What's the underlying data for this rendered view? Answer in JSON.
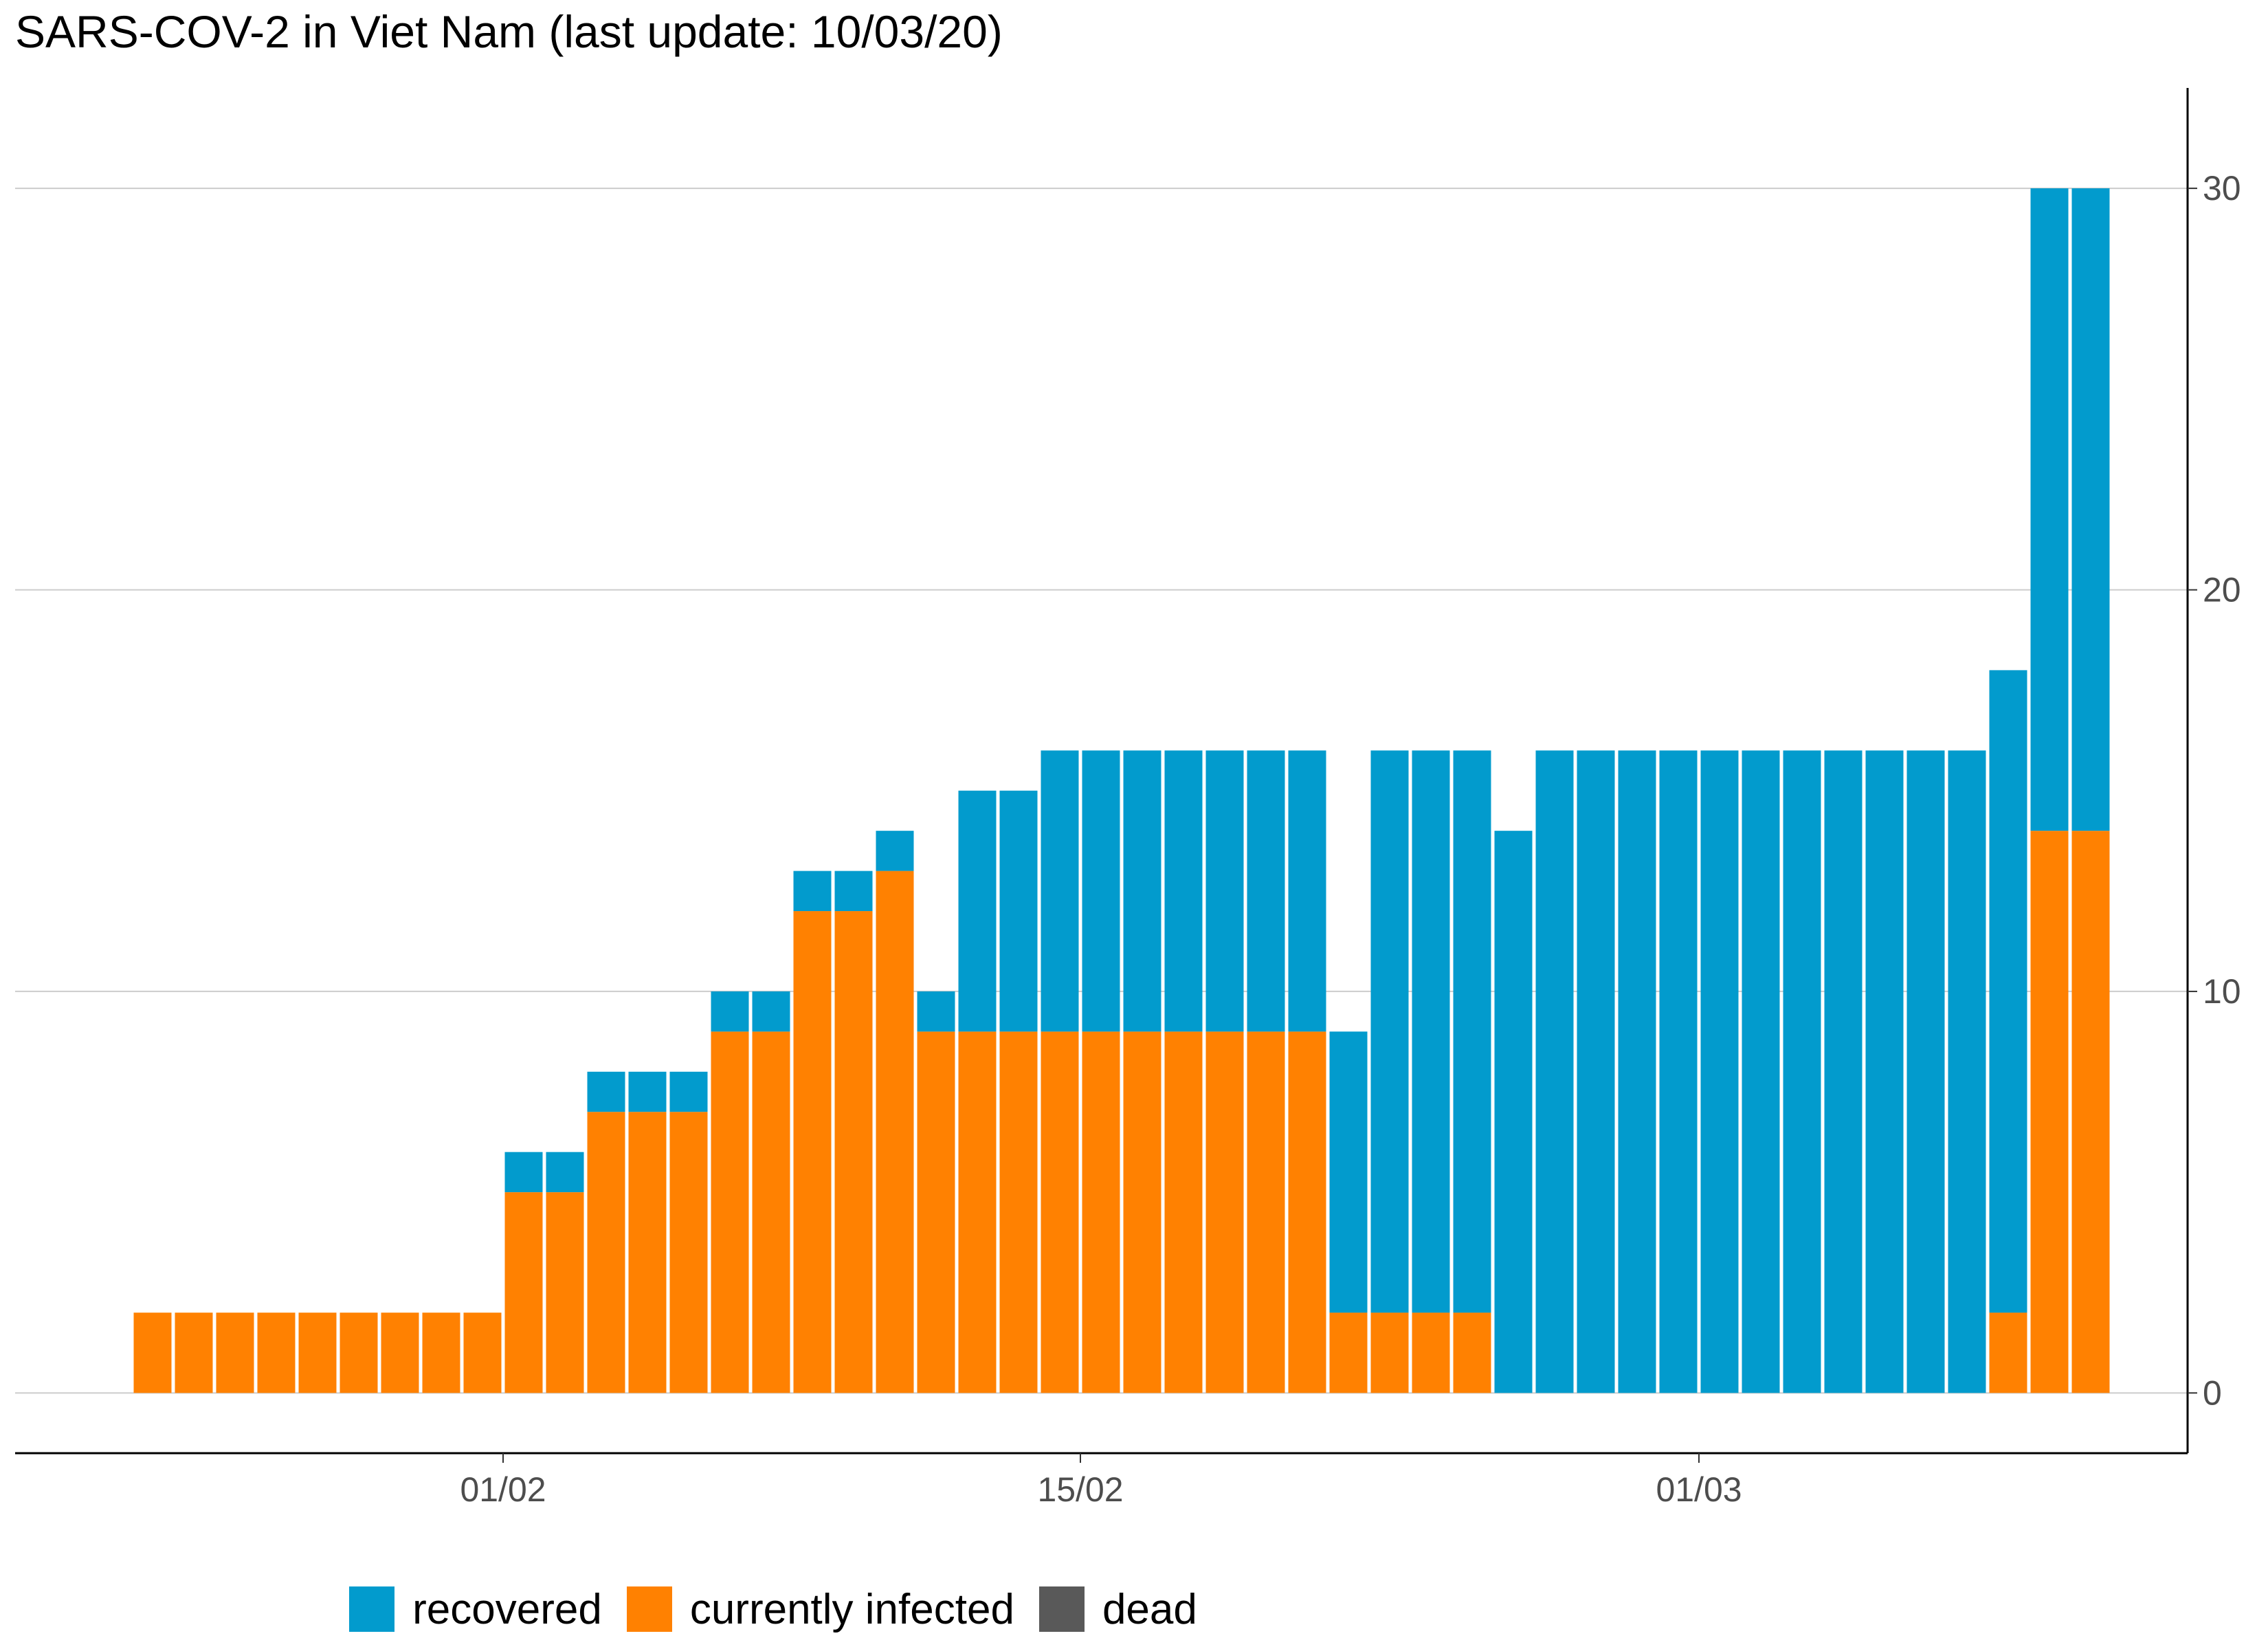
{
  "chart_data": {
    "type": "bar",
    "stacked": true,
    "title": "SARS-COV-2 in Viet Nam (last update: 10/03/20)",
    "xlabel": "",
    "ylabel": "",
    "ylim": [
      -1.5,
      32.5
    ],
    "yticks": [
      0,
      10,
      20,
      30
    ],
    "yaxis_position": "right",
    "grid": "horizontal major",
    "legend_position": "bottom",
    "x": [
      "23/01",
      "24/01",
      "25/01",
      "26/01",
      "27/01",
      "28/01",
      "29/01",
      "30/01",
      "31/01",
      "01/02",
      "02/02",
      "03/02",
      "04/02",
      "05/02",
      "06/02",
      "07/02",
      "08/02",
      "09/02",
      "10/02",
      "11/02",
      "12/02",
      "13/02",
      "14/02",
      "15/02",
      "16/02",
      "17/02",
      "18/02",
      "19/02",
      "20/02",
      "21/02",
      "22/02",
      "23/02",
      "24/02",
      "25/02",
      "26/02",
      "27/02",
      "28/02",
      "29/02",
      "01/03",
      "02/03",
      "03/03",
      "04/03",
      "05/03",
      "06/03",
      "07/03",
      "08/03",
      "09/03",
      "10/03"
    ],
    "xticks": [
      {
        "date": "01/02",
        "label": "01/02"
      },
      {
        "date": "15/02",
        "label": "15/02"
      },
      {
        "date": "01/03",
        "label": "01/03"
      }
    ],
    "series": [
      {
        "name": "recovered",
        "color": "#029BCD",
        "values": [
          0,
          0,
          0,
          0,
          0,
          0,
          0,
          0,
          0,
          1,
          1,
          1,
          1,
          1,
          1,
          1,
          1,
          1,
          1,
          1,
          6,
          6,
          7,
          7,
          7,
          7,
          7,
          7,
          7,
          7,
          14,
          14,
          14,
          14,
          16,
          16,
          16,
          16,
          16,
          16,
          16,
          16,
          16,
          16,
          16,
          16,
          16,
          16
        ]
      },
      {
        "name": "currently infected",
        "color": "#FF8101",
        "values": [
          2,
          2,
          2,
          2,
          2,
          2,
          2,
          2,
          2,
          5,
          5,
          7,
          7,
          7,
          9,
          9,
          12,
          12,
          13,
          9,
          9,
          9,
          9,
          9,
          9,
          9,
          9,
          9,
          9,
          2,
          2,
          2,
          2,
          0,
          0,
          0,
          0,
          0,
          0,
          0,
          0,
          0,
          0,
          0,
          0,
          2,
          14,
          14
        ]
      },
      {
        "name": "dead",
        "color": "#595959",
        "values": [
          0,
          0,
          0,
          0,
          0,
          0,
          0,
          0,
          0,
          0,
          0,
          0,
          0,
          0,
          0,
          0,
          0,
          0,
          0,
          0,
          0,
          0,
          0,
          0,
          0,
          0,
          0,
          0,
          0,
          0,
          0,
          0,
          0,
          0,
          0,
          0,
          0,
          0,
          0,
          0,
          0,
          0,
          0,
          0,
          0,
          0,
          0,
          0
        ]
      }
    ]
  }
}
